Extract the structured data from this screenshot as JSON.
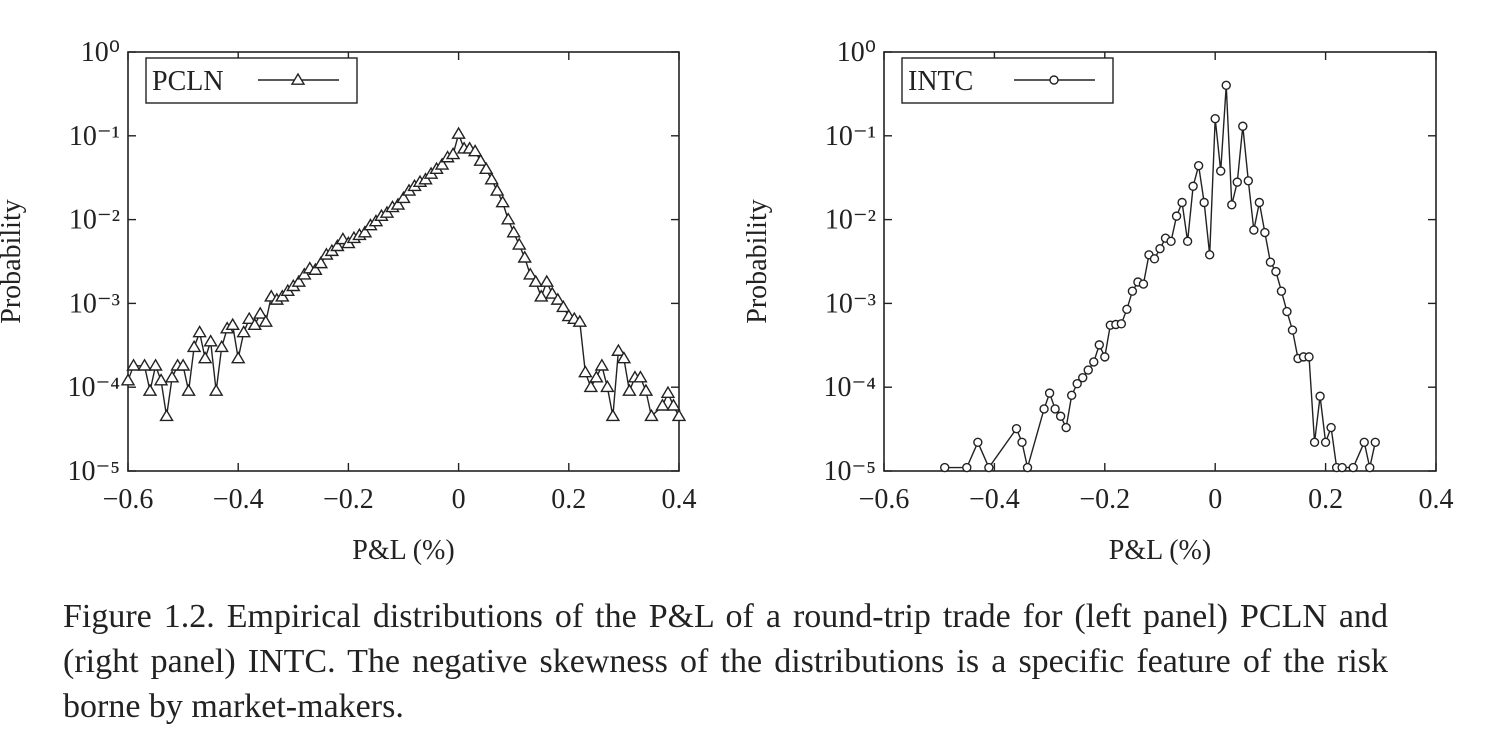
{
  "chart_data": [
    {
      "type": "line",
      "log_y": true,
      "legend": "upper left",
      "marker": "triangle",
      "color": "#222222",
      "xlabel": "P&L (%)",
      "ylabel": "Probability",
      "xlim": [
        -0.6,
        0.4
      ],
      "xticks": [
        {
          "value": -0.6,
          "label": "−0.6"
        },
        {
          "value": -0.4,
          "label": "−0.4"
        },
        {
          "value": -0.2,
          "label": "−0.2"
        },
        0,
        0.2,
        0.4
      ],
      "ylim": [
        1e-05,
        1
      ],
      "yticks": [
        {
          "value": 1,
          "label": "10⁰"
        },
        {
          "value": 0.1,
          "label": "10⁻¹"
        },
        {
          "value": 0.01,
          "label": "10⁻²"
        },
        {
          "value": 0.001,
          "label": "10⁻³"
        },
        {
          "value": 0.0001,
          "label": "10⁻⁴"
        },
        {
          "value": 1e-05,
          "label": "10⁻⁵"
        }
      ],
      "x": [
        -0.6,
        -0.59,
        -0.57,
        -0.56,
        -0.55,
        -0.54,
        -0.53,
        -0.52,
        -0.51,
        -0.5,
        -0.49,
        -0.48,
        -0.47,
        -0.46,
        -0.45,
        -0.44,
        -0.43,
        -0.42,
        -0.41,
        -0.4,
        -0.39,
        -0.38,
        -0.37,
        -0.36,
        -0.35,
        -0.34,
        -0.33,
        -0.32,
        -0.31,
        -0.3,
        -0.29,
        -0.28,
        -0.27,
        -0.26,
        -0.25,
        -0.24,
        -0.23,
        -0.22,
        -0.21,
        -0.2,
        -0.19,
        -0.18,
        -0.17,
        -0.16,
        -0.15,
        -0.14,
        -0.13,
        -0.12,
        -0.11,
        -0.1,
        -0.09,
        -0.08,
        -0.07,
        -0.06,
        -0.05,
        -0.04,
        -0.03,
        -0.02,
        -0.01,
        0,
        0.01,
        0.02,
        0.03,
        0.04,
        0.05,
        0.06,
        0.07,
        0.08,
        0.09,
        0.1,
        0.11,
        0.12,
        0.13,
        0.14,
        0.15,
        0.16,
        0.17,
        0.18,
        0.19,
        0.2,
        0.21,
        0.22,
        0.23,
        0.24,
        0.25,
        0.26,
        0.27,
        0.28,
        0.29,
        0.3,
        0.31,
        0.32,
        0.33,
        0.34,
        0.35,
        0.37,
        0.38,
        0.39,
        0.4
      ],
      "series": [
        {
          "name": "PCLN",
          "values": [
            0.00012,
            0.00018,
            0.00018,
            9e-05,
            0.00018,
            0.00012,
            4.5e-05,
            0.00013,
            0.00018,
            0.00018,
            9e-05,
            0.0003,
            0.00045,
            0.00022,
            0.00035,
            9e-05,
            0.0003,
            0.0005,
            0.00055,
            0.00022,
            0.00045,
            0.00065,
            0.00055,
            0.00075,
            0.0006,
            0.0012,
            0.0011,
            0.0012,
            0.0014,
            0.0016,
            0.0018,
            0.0022,
            0.0026,
            0.0025,
            0.003,
            0.0038,
            0.0042,
            0.0048,
            0.0058,
            0.0052,
            0.006,
            0.0065,
            0.007,
            0.0085,
            0.0095,
            0.011,
            0.012,
            0.014,
            0.015,
            0.018,
            0.022,
            0.025,
            0.028,
            0.03,
            0.035,
            0.04,
            0.045,
            0.055,
            0.06,
            0.105,
            0.07,
            0.07,
            0.065,
            0.05,
            0.04,
            0.03,
            0.022,
            0.016,
            0.01,
            0.007,
            0.005,
            0.0035,
            0.0022,
            0.0018,
            0.0012,
            0.0018,
            0.0013,
            0.0011,
            0.0009,
            0.0007,
            0.00065,
            0.0006,
            0.00015,
            0.0001,
            0.00013,
            0.00018,
            0.0001,
            4.5e-05,
            0.00027,
            0.00022,
            9e-05,
            0.00013,
            0.00013,
            9e-05,
            4.5e-05,
            6e-05,
            8.5e-05,
            6e-05,
            4.5e-05
          ]
        }
      ]
    },
    {
      "type": "line",
      "log_y": true,
      "legend": "upper left",
      "marker": "circle",
      "color": "#222222",
      "xlabel": "P&L (%)",
      "ylabel": "Probability",
      "xlim": [
        -0.6,
        0.4
      ],
      "xticks": [
        {
          "value": -0.6,
          "label": "−0.6"
        },
        {
          "value": -0.4,
          "label": "−0.4"
        },
        {
          "value": -0.2,
          "label": "−0.2"
        },
        0,
        0.2,
        0.4
      ],
      "ylim": [
        1e-05,
        1
      ],
      "yticks": [
        {
          "value": 1,
          "label": "10⁰"
        },
        {
          "value": 0.1,
          "label": "10⁻¹"
        },
        {
          "value": 0.01,
          "label": "10⁻²"
        },
        {
          "value": 0.001,
          "label": "10⁻³"
        },
        {
          "value": 0.0001,
          "label": "10⁻⁴"
        },
        {
          "value": 1e-05,
          "label": "10⁻⁵"
        }
      ],
      "x": [
        -0.49,
        -0.45,
        -0.43,
        -0.41,
        -0.36,
        -0.35,
        -0.34,
        -0.31,
        -0.3,
        -0.29,
        -0.28,
        -0.27,
        -0.26,
        -0.25,
        -0.24,
        -0.23,
        -0.22,
        -0.21,
        -0.2,
        -0.19,
        -0.18,
        -0.17,
        -0.16,
        -0.15,
        -0.14,
        -0.13,
        -0.12,
        -0.11,
        -0.1,
        -0.09,
        -0.08,
        -0.07,
        -0.06,
        -0.05,
        -0.04,
        -0.03,
        -0.02,
        -0.01,
        0,
        0.01,
        0.02,
        0.03,
        0.04,
        0.05,
        0.06,
        0.07,
        0.08,
        0.09,
        0.1,
        0.11,
        0.12,
        0.13,
        0.14,
        0.15,
        0.16,
        0.17,
        0.18,
        0.19,
        0.2,
        0.21,
        0.22,
        0.23,
        0.25,
        0.27,
        0.28,
        0.29
      ],
      "series": [
        {
          "name": "INTC",
          "values": [
            1.1e-05,
            1.1e-05,
            2.2e-05,
            1.1e-05,
            3.2e-05,
            2.2e-05,
            1.1e-05,
            5.5e-05,
            8.5e-05,
            5.5e-05,
            4.5e-05,
            3.3e-05,
            8e-05,
            0.00011,
            0.00013,
            0.00016,
            0.0002,
            0.00032,
            0.00023,
            0.00055,
            0.00056,
            0.00057,
            0.00085,
            0.0014,
            0.0018,
            0.0017,
            0.0038,
            0.0034,
            0.0045,
            0.006,
            0.0055,
            0.011,
            0.016,
            0.0055,
            0.025,
            0.044,
            0.016,
            0.0038,
            0.16,
            0.038,
            0.4,
            0.015,
            0.028,
            0.13,
            0.029,
            0.0075,
            0.016,
            0.007,
            0.0031,
            0.0024,
            0.0014,
            0.0008,
            0.00048,
            0.00022,
            0.00023,
            0.00023,
            2.2e-05,
            7.8e-05,
            2.2e-05,
            3.3e-05,
            1.1e-05,
            1.1e-05,
            1.1e-05,
            2.2e-05,
            1.1e-05,
            2.2e-05
          ]
        }
      ]
    }
  ],
  "caption": "Figure 1.2. Empirical distributions of the P&L of a round-trip trade for (left panel) PCLN and (right panel) INTC. The negative skewness of the distributions is a specific feature of the risk borne by market-makers."
}
